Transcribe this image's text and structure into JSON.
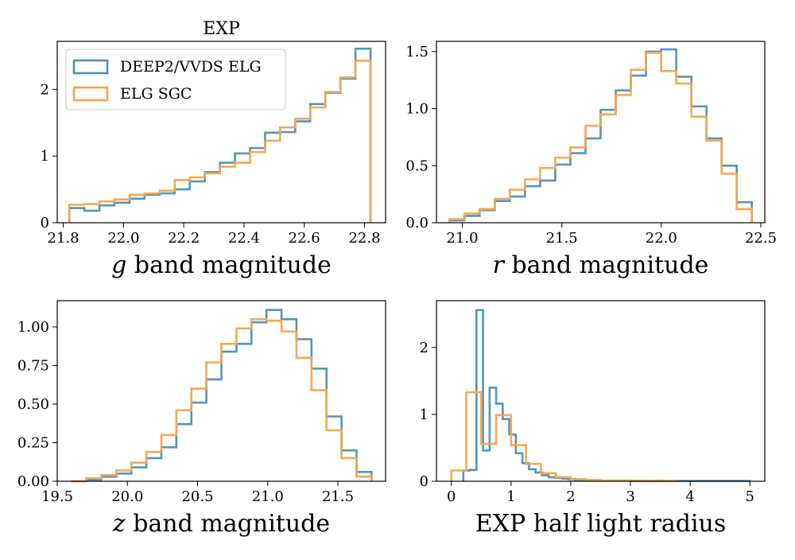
{
  "figure_title": "EXP",
  "colors": {
    "deep2": "#4a90b8",
    "elg": "#f7a44a",
    "frame": "#000000",
    "legend_border": "#cccccc"
  },
  "chart_data": [
    {
      "id": "g-band",
      "type": "step-histogram",
      "title": "EXP",
      "xlabel": "g band magnitude",
      "ylabel": "",
      "xlim": [
        21.78,
        22.87
      ],
      "ylim": [
        0,
        2.72
      ],
      "xticks": [
        "21.8",
        "22.0",
        "22.2",
        "22.4",
        "22.6",
        "22.8"
      ],
      "yticks": [
        "0",
        "1",
        "2"
      ],
      "legend": {
        "position": "upper-left",
        "entries": [
          "DEEP2/VVDS ELG",
          "ELG SGC"
        ]
      },
      "series": [
        {
          "name": "DEEP2/VVDS ELG",
          "color": "#4a90b8",
          "edges": [
            21.82,
            21.87,
            21.92,
            21.97,
            22.02,
            22.07,
            22.12,
            22.17,
            22.22,
            22.27,
            22.32,
            22.37,
            22.42,
            22.47,
            22.52,
            22.57,
            22.62,
            22.67,
            22.72,
            22.77,
            22.82
          ],
          "heights": [
            0.22,
            0.18,
            0.26,
            0.3,
            0.36,
            0.42,
            0.44,
            0.5,
            0.62,
            0.76,
            0.9,
            1.04,
            1.12,
            1.35,
            1.36,
            1.52,
            1.78,
            1.95,
            2.16,
            2.61
          ]
        },
        {
          "name": "ELG SGC",
          "color": "#f7a44a",
          "edges": [
            21.82,
            21.87,
            21.92,
            21.97,
            22.02,
            22.07,
            22.12,
            22.17,
            22.22,
            22.27,
            22.32,
            22.37,
            22.42,
            22.47,
            22.52,
            22.57,
            22.62,
            22.67,
            22.72,
            22.77,
            22.82
          ],
          "heights": [
            0.27,
            0.28,
            0.32,
            0.35,
            0.42,
            0.44,
            0.48,
            0.64,
            0.68,
            0.74,
            0.84,
            0.9,
            1.06,
            1.23,
            1.43,
            1.56,
            1.73,
            1.96,
            2.18,
            2.43
          ]
        }
      ]
    },
    {
      "id": "r-band",
      "type": "step-histogram",
      "title": "",
      "xlabel": "r band magnitude",
      "ylabel": "",
      "xlim": [
        20.87,
        22.52
      ],
      "ylim": [
        0,
        1.59
      ],
      "xticks": [
        "21.0",
        "21.5",
        "22.0",
        "22.5"
      ],
      "yticks": [
        "0.0",
        "0.5",
        "1.0",
        "1.5"
      ],
      "series": [
        {
          "name": "DEEP2/VVDS ELG",
          "color": "#4a90b8",
          "edges": [
            20.935,
            21.011,
            21.087,
            21.163,
            21.239,
            21.315,
            21.391,
            21.467,
            21.543,
            21.619,
            21.695,
            21.771,
            21.847,
            21.923,
            21.999,
            22.075,
            22.151,
            22.227,
            22.303,
            22.379,
            22.455
          ],
          "heights": [
            0.02,
            0.06,
            0.11,
            0.19,
            0.23,
            0.32,
            0.37,
            0.51,
            0.61,
            0.74,
            0.99,
            1.16,
            1.29,
            1.5,
            1.52,
            1.28,
            1.02,
            0.74,
            0.5,
            0.18
          ]
        },
        {
          "name": "ELG SGC",
          "color": "#f7a44a",
          "edges": [
            20.935,
            21.011,
            21.087,
            21.163,
            21.239,
            21.315,
            21.391,
            21.467,
            21.543,
            21.619,
            21.695,
            21.771,
            21.847,
            21.923,
            21.999,
            22.075,
            22.151,
            22.227,
            22.303,
            22.379,
            22.455
          ],
          "heights": [
            0.03,
            0.08,
            0.12,
            0.21,
            0.29,
            0.38,
            0.48,
            0.57,
            0.66,
            0.85,
            0.95,
            1.12,
            1.34,
            1.49,
            1.33,
            1.22,
            0.93,
            0.72,
            0.43,
            0.12
          ]
        }
      ]
    },
    {
      "id": "z-band",
      "type": "step-histogram",
      "title": "",
      "xlabel": "z band magnitude",
      "ylabel": "",
      "xlim": [
        19.5,
        21.84
      ],
      "ylim": [
        0,
        1.17
      ],
      "xticks": [
        "19.5",
        "20.0",
        "20.5",
        "21.0",
        "21.5"
      ],
      "yticks": [
        "0.00",
        "0.25",
        "0.50",
        "0.75",
        "1.00"
      ],
      "series": [
        {
          "name": "DEEP2/VVDS ELG",
          "color": "#4a90b8",
          "edges": [
            19.6,
            19.707,
            19.814,
            19.921,
            20.028,
            20.135,
            20.242,
            20.349,
            20.456,
            20.563,
            20.67,
            20.777,
            20.884,
            20.991,
            21.098,
            21.205,
            21.312,
            21.419,
            21.526,
            21.633,
            21.74
          ],
          "heights": [
            0,
            0.01,
            0.03,
            0.05,
            0.09,
            0.15,
            0.22,
            0.37,
            0.51,
            0.66,
            0.84,
            0.89,
            1.03,
            1.11,
            1.05,
            0.92,
            0.73,
            0.42,
            0.2,
            0.06
          ]
        },
        {
          "name": "ELG SGC",
          "color": "#f7a44a",
          "edges": [
            19.6,
            19.707,
            19.814,
            19.921,
            20.028,
            20.135,
            20.242,
            20.349,
            20.456,
            20.563,
            20.67,
            20.777,
            20.884,
            20.991,
            21.098,
            21.205,
            21.312,
            21.419,
            21.526,
            21.633,
            21.74
          ],
          "heights": [
            0,
            0.02,
            0.04,
            0.07,
            0.12,
            0.19,
            0.3,
            0.46,
            0.6,
            0.77,
            0.89,
            0.99,
            1.05,
            1.04,
            0.97,
            0.8,
            0.59,
            0.33,
            0.15,
            0.03
          ]
        }
      ]
    },
    {
      "id": "half-light-radius",
      "type": "step-histogram",
      "title": "",
      "xlabel": "EXP half light radius",
      "ylabel": "",
      "xlim": [
        -0.25,
        5.25
      ],
      "ylim": [
        0,
        2.7
      ],
      "xticks": [
        "0",
        "1",
        "2",
        "3",
        "4",
        "5"
      ],
      "yticks": [
        "0",
        "1",
        "2"
      ],
      "series": [
        {
          "name": "DEEP2/VVDS ELG",
          "color": "#4a90b8",
          "edges": [
            0.2,
            0.31,
            0.42,
            0.53,
            0.64,
            0.75,
            0.86,
            0.97,
            1.08,
            1.19,
            1.3,
            1.41,
            1.52,
            1.63,
            1.74,
            1.85,
            1.96,
            2.07,
            2.18,
            2.29,
            2.4,
            2.7,
            3.0,
            3.5,
            4.0,
            4.5,
            5.0
          ],
          "heights": [
            0.16,
            0.17,
            2.56,
            0.46,
            1.4,
            1.16,
            0.93,
            0.7,
            0.42,
            0.27,
            0.18,
            0.13,
            0.09,
            0.06,
            0.05,
            0.04,
            0.03,
            0.02,
            0.02,
            0.01,
            0.01,
            0.01,
            0.005,
            0.005,
            0.005,
            0.005
          ]
        },
        {
          "name": "ELG SGC",
          "color": "#f7a44a",
          "edges": [
            0,
            0.25,
            0.5,
            0.75,
            1.0,
            1.25,
            1.5,
            1.75,
            2.0,
            2.25,
            2.5,
            2.75,
            3.0,
            3.25,
            3.5,
            3.75
          ],
          "heights": [
            0.16,
            1.33,
            0.56,
            0.99,
            0.54,
            0.26,
            0.12,
            0.06,
            0.03,
            0.02,
            0.01,
            0.01,
            0.01,
            0.01,
            0.005
          ]
        }
      ]
    }
  ]
}
